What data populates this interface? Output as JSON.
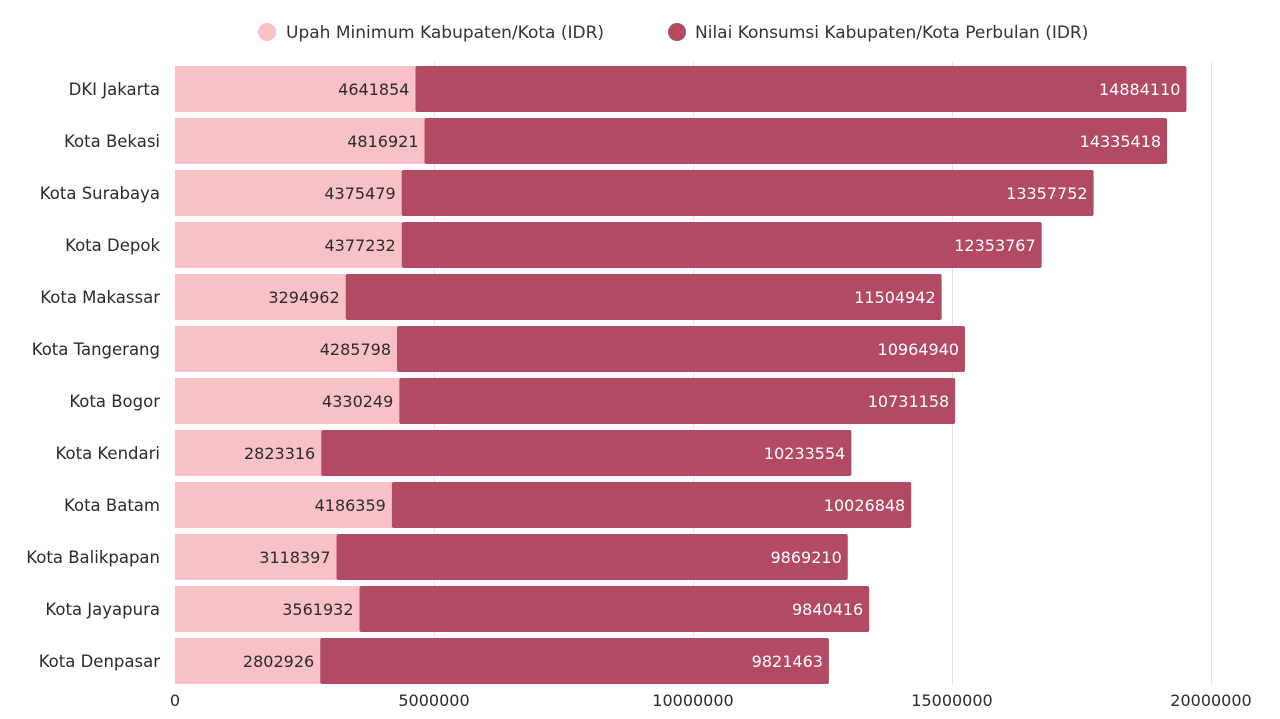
{
  "chart_data": {
    "type": "bar",
    "orientation": "horizontal",
    "stacked": true,
    "categories": [
      "DKI Jakarta",
      "Kota Bekasi",
      "Kota Surabaya",
      "Kota Depok",
      "Kota Makassar",
      "Kota Tangerang",
      "Kota Bogor",
      "Kota Kendari",
      "Kota Batam",
      "Kota Balikpapan",
      "Kota Jayapura",
      "Kota Denpasar"
    ],
    "series": [
      {
        "name": "Upah Minimum Kabupaten/Kota (IDR)",
        "color": "#f8c1c6",
        "values": [
          4641854,
          4816921,
          4375479,
          4377232,
          3294962,
          4285798,
          4330249,
          2823316,
          4186359,
          3118397,
          3561932,
          2802926
        ],
        "labels": [
          "4641854",
          "4816921",
          "4375479",
          "4377232",
          "3294962",
          "4285798",
          "4330249",
          "2823316",
          "4186359",
          "3118397",
          "3561932",
          "2802926"
        ]
      },
      {
        "name": "Nilai Konsumsi Kabupaten/Kota Perbulan (IDR)",
        "color": "#b34a63",
        "values": [
          14884110,
          14335418,
          13357752,
          12353767,
          11504942,
          10964940,
          10731158,
          10233554,
          10026848,
          9869210,
          9840416,
          9821463
        ],
        "labels": [
          "14884110",
          "14335418",
          "13357752",
          "12353767",
          "11504942",
          "10964940",
          "10731158",
          "10233554",
          "10026848",
          "9869210",
          "9840416",
          "9821463"
        ]
      }
    ],
    "xlim": [
      0,
      20000000
    ],
    "xticks": [
      0,
      5000000,
      10000000,
      15000000,
      20000000
    ],
    "xtick_labels": [
      "0",
      "5000000",
      "10000000",
      "15000000",
      "20000000"
    ],
    "grid": true,
    "legend_position": "top",
    "title": "",
    "xlabel": "",
    "ylabel": ""
  }
}
